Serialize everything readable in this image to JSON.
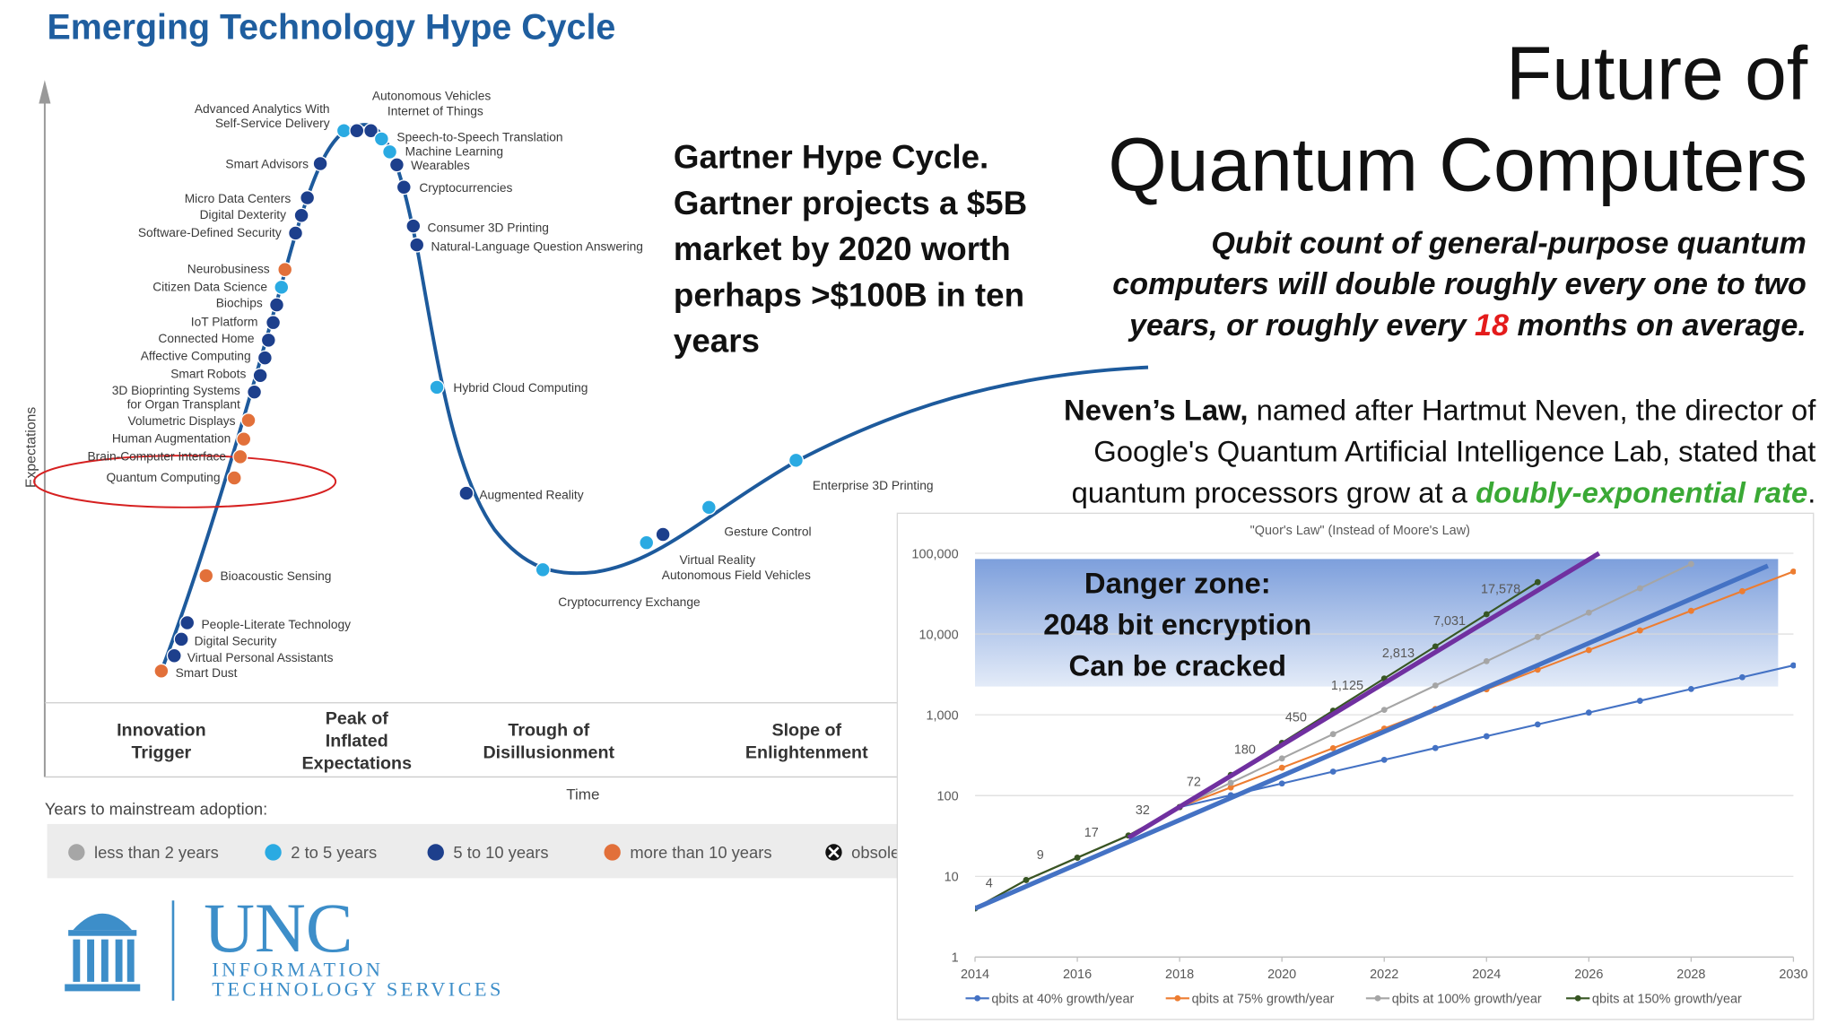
{
  "hype_cycle": {
    "title": "Emerging Technology Hype Cycle",
    "y_axis_label": "Expectations",
    "x_axis_label": "Time",
    "points": [
      {
        "lines": [
          "Advanced Analytics With",
          "Self-Service Delivery"
        ],
        "color": "#2aaae2"
      },
      {
        "lines": [
          "Smart Advisors"
        ],
        "color": "#1d3f8c"
      },
      {
        "lines": [
          "Micro Data Centers"
        ],
        "color": "#1d3f8c"
      },
      {
        "lines": [
          "Digital Dexterity"
        ],
        "color": "#1d3f8c"
      },
      {
        "lines": [
          "Software-Defined Security"
        ],
        "color": "#1d3f8c"
      },
      {
        "lines": [
          "Neurobusiness"
        ],
        "color": "#e2703a"
      },
      {
        "lines": [
          "Citizen Data Science"
        ],
        "color": "#2aaae2"
      },
      {
        "lines": [
          "Biochips"
        ],
        "color": "#1d3f8c"
      },
      {
        "lines": [
          "IoT Platform"
        ],
        "color": "#1d3f8c"
      },
      {
        "lines": [
          "Connected Home"
        ],
        "color": "#1d3f8c"
      },
      {
        "lines": [
          "Affective Computing"
        ],
        "color": "#1d3f8c"
      },
      {
        "lines": [
          "Smart Robots"
        ],
        "color": "#1d3f8c"
      },
      {
        "lines": [
          "3D Bioprinting Systems",
          "for Organ Transplant"
        ],
        "color": "#1d3f8c"
      },
      {
        "lines": [
          "Volumetric Displays"
        ],
        "color": "#e2703a"
      },
      {
        "lines": [
          "Human Augmentation"
        ],
        "color": "#e2703a"
      },
      {
        "lines": [
          "Brain-Computer Interface"
        ],
        "color": "#e2703a"
      },
      {
        "lines": [
          "Quantum Computing"
        ],
        "color": "#e2703a"
      },
      {
        "lines": [
          "Bioacoustic Sensing"
        ],
        "color": "#e2703a"
      },
      {
        "lines": [
          "People-Literate Technology"
        ],
        "color": "#1d3f8c"
      },
      {
        "lines": [
          "Digital Security"
        ],
        "color": "#1d3f8c"
      },
      {
        "lines": [
          "Virtual Personal Assistants"
        ],
        "color": "#1d3f8c"
      },
      {
        "lines": [
          "Smart Dust"
        ],
        "color": "#e2703a"
      },
      {
        "lines": [
          "Autonomous Vehicles"
        ],
        "color": "#1d3f8c"
      },
      {
        "lines": [
          "Internet of Things"
        ],
        "color": "#1d3f8c"
      },
      {
        "lines": [
          "Speech-to-Speech Translation"
        ],
        "color": "#2aaae2"
      },
      {
        "lines": [
          "Machine Learning"
        ],
        "color": "#2aaae2"
      },
      {
        "lines": [
          "Wearables"
        ],
        "color": "#1d3f8c"
      },
      {
        "lines": [
          "Cryptocurrencies"
        ],
        "color": "#1d3f8c"
      },
      {
        "lines": [
          "Consumer 3D Printing"
        ],
        "color": "#1d3f8c"
      },
      {
        "lines": [
          "Natural-Language Question Answering"
        ],
        "color": "#1d3f8c"
      },
      {
        "lines": [
          "Hybrid Cloud Computing"
        ],
        "color": "#2aaae2"
      },
      {
        "lines": [
          "Augmented Reality"
        ],
        "color": "#1d3f8c"
      },
      {
        "lines": [
          "Cryptocurrency Exchange"
        ],
        "color": "#2aaae2"
      },
      {
        "lines": [
          "Virtual Reality"
        ],
        "color": "#2aaae2"
      },
      {
        "lines": [
          "Autonomous Field Vehicles"
        ],
        "color": "#1d3f8c"
      },
      {
        "lines": [
          "Gesture Control"
        ],
        "color": "#2aaae2"
      },
      {
        "lines": [
          "Enterprise 3D Printing"
        ],
        "color": "#2aaae2"
      }
    ],
    "phases": [
      [
        "Innovation",
        "Trigger"
      ],
      [
        "Peak of",
        "Inflated",
        "Expectations"
      ],
      [
        "Trough of",
        "Disillusionment"
      ],
      [
        "Slope of",
        "Enlightenment"
      ]
    ],
    "legend_title": "Years to mainstream adoption:",
    "legend": [
      {
        "label": "less than 2 years",
        "color": "#a6a6a6"
      },
      {
        "label": "2 to 5 years",
        "color": "#2aaae2"
      },
      {
        "label": "5 to 10 years",
        "color": "#1d3f8c"
      },
      {
        "label": "more than 10 years",
        "color": "#e2703a"
      },
      {
        "label": "obsolete before plateau",
        "color": "#111111"
      }
    ]
  },
  "gartner_note": [
    "Gartner Hype Cycle.",
    "Gartner projects a $5B",
    "market by 2020 worth",
    "perhaps >$100B in ten",
    "years"
  ],
  "header": {
    "title": [
      "Future of",
      "Quantum Computers"
    ]
  },
  "subtitle": {
    "lines": [
      [
        "Qubit count of general-purpose quantum"
      ],
      [
        "computers will double roughly every one to two"
      ],
      [
        "years, or roughly every ",
        "18",
        " months on average."
      ]
    ]
  },
  "nevens_law": {
    "lines": [
      [
        "Neven’s Law,",
        " named after Hartmut Neven, the director of"
      ],
      [
        "Google's Quantum Artificial Intelligence Lab, stated that"
      ],
      [
        "quantum processors grow at a ",
        "doubly-exponential rate",
        "."
      ]
    ]
  },
  "logo": {
    "name": "UNC",
    "lines": [
      "INFORMATION",
      "TECHNOLOGY SERVICES"
    ]
  },
  "chart_data": {
    "type": "line",
    "title": "\"Quor's Law\" (Instead of Moore's Law)",
    "log_y": true,
    "grid": true,
    "x": [
      2014,
      2015,
      2016,
      2017,
      2018,
      2019,
      2020,
      2021,
      2022,
      2023,
      2024,
      2025,
      2026,
      2027,
      2028,
      2029,
      2030
    ],
    "xlim": [
      2014,
      2030
    ],
    "xticks": [
      2014,
      2016,
      2018,
      2020,
      2022,
      2024,
      2026,
      2028,
      2030
    ],
    "ylim": [
      1,
      100000
    ],
    "yticks": [
      1,
      10,
      100,
      {
        "value": 1000,
        "label": "1,000"
      },
      {
        "value": 10000,
        "label": "10,000"
      },
      {
        "value": 100000,
        "label": "100,000"
      }
    ],
    "legend": "bottom",
    "series": [
      {
        "name": "qbits at 40% growth/year",
        "color": "#4472c4",
        "values": [
          4,
          9,
          17,
          32,
          72,
          101,
          141,
          198,
          277,
          388,
          543,
          760,
          1064,
          1490,
          2086,
          2920,
          4088
        ]
      },
      {
        "name": "qbits at 75% growth/year",
        "color": "#ed7d31",
        "values": [
          4,
          9,
          17,
          32,
          72,
          126,
          221,
          386,
          675,
          1182,
          2068,
          3620,
          6334,
          11085,
          19399,
          33948,
          59409
        ]
      },
      {
        "name": "qbits at 100% growth/year",
        "color": "#a5a5a5",
        "values": [
          4,
          9,
          17,
          32,
          72,
          144,
          288,
          576,
          1152,
          2304,
          4608,
          9216,
          18432,
          36864,
          73728,
          null,
          null
        ]
      },
      {
        "name": "qbits at 150% growth/year",
        "color": "#375623",
        "values": [
          4,
          9,
          17,
          32,
          72,
          180,
          450,
          1125,
          2813,
          7031,
          17578,
          43945,
          null,
          null,
          null,
          null,
          null
        ],
        "value_labels": [
          "4",
          "9",
          "17",
          "32",
          "72",
          "180",
          "450",
          "1,125",
          "2,813",
          "7,031",
          "17,578",
          null,
          null,
          null,
          null,
          null,
          null
        ]
      }
    ],
    "trend_lines": [
      {
        "color": "#7030a0",
        "x": [
          2017,
          2026.2
        ],
        "values": [
          30,
          100000
        ]
      },
      {
        "color": "#4472c4",
        "x": [
          2014,
          2029.5
        ],
        "values": [
          4,
          70000
        ]
      }
    ],
    "danger_zone": {
      "range": [
        2240,
        85000
      ],
      "lines": [
        "Danger zone:",
        "2048 bit encryption",
        "Can be cracked"
      ]
    }
  }
}
